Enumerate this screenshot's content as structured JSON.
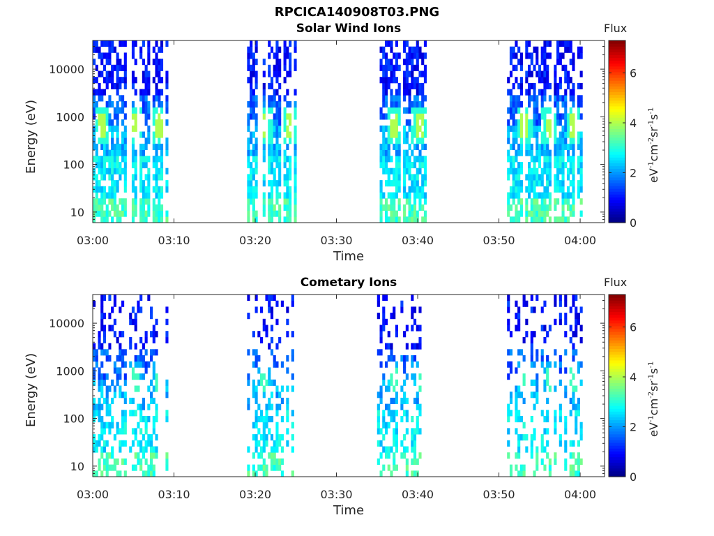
{
  "figure_title": "RPCICA140908T03.PNG",
  "chart_data": [
    {
      "type": "heatmap",
      "title": "Solar Wind Ions",
      "xlabel": "Time",
      "ylabel": "Energy (eV)",
      "x_ticks": [
        "03:00",
        "03:10",
        "03:20",
        "03:30",
        "03:40",
        "03:50",
        "04:00"
      ],
      "y_ticks": [
        "10",
        "100",
        "1000",
        "10000"
      ],
      "y_scale": "log",
      "ylim": [
        6,
        40000
      ],
      "xlim": [
        "03:00",
        "04:03"
      ],
      "colorbar": {
        "label": "Flux",
        "unit": "eV-1cm-2sr-1s-1",
        "ticks": [
          "0",
          "2",
          "4",
          "6"
        ],
        "range": [
          0,
          7.3
        ],
        "colormap": "jet"
      },
      "data_intervals": [
        {
          "start": "03:00",
          "end": "03:09"
        },
        {
          "start": "03:19",
          "end": "03:25"
        },
        {
          "start": "03:35",
          "end": "03:41"
        },
        {
          "start": "03:51",
          "end": "04:00"
        }
      ],
      "peaks": [
        {
          "time": "03:01",
          "energy": 650,
          "flux": 4.0
        },
        {
          "time": "03:05",
          "energy": 650,
          "flux": 4.0
        },
        {
          "time": "03:08",
          "energy": 650,
          "flux": 4.0
        },
        {
          "time": "03:21",
          "energy": 650,
          "flux": 4.0
        },
        {
          "time": "03:24",
          "energy": 650,
          "flux": 4.0
        },
        {
          "time": "03:37",
          "energy": 650,
          "flux": 4.0
        },
        {
          "time": "03:40",
          "energy": 650,
          "flux": 4.0
        },
        {
          "time": "03:53",
          "energy": 650,
          "flux": 4.0
        },
        {
          "time": "03:56",
          "energy": 650,
          "flux": 4.0
        },
        {
          "time": "03:59",
          "energy": 650,
          "flux": 4.0
        }
      ]
    },
    {
      "type": "heatmap",
      "title": "Cometary Ions",
      "xlabel": "Time",
      "ylabel": "Energy (eV)",
      "x_ticks": [
        "03:00",
        "03:10",
        "03:20",
        "03:30",
        "03:40",
        "03:50",
        "04:00"
      ],
      "y_ticks": [
        "10",
        "100",
        "1000",
        "10000"
      ],
      "y_scale": "log",
      "ylim": [
        6,
        40000
      ],
      "xlim": [
        "03:00",
        "04:03"
      ],
      "colorbar": {
        "label": "Flux",
        "unit": "eV-1cm-2sr-1s-1",
        "ticks": [
          "0",
          "2",
          "4",
          "6"
        ],
        "range": [
          0,
          7.3
        ],
        "colormap": "jet"
      },
      "data_intervals": [
        {
          "start": "03:00",
          "end": "03:09"
        },
        {
          "start": "03:19",
          "end": "03:25"
        },
        {
          "start": "03:35",
          "end": "03:41"
        },
        {
          "start": "03:51",
          "end": "04:00"
        }
      ],
      "peaks": [
        {
          "time": "03:05",
          "energy": 650,
          "flux": 3.2
        },
        {
          "time": "03:08",
          "energy": 650,
          "flux": 3.2
        },
        {
          "time": "03:21",
          "energy": 650,
          "flux": 3.2
        },
        {
          "time": "03:37",
          "energy": 650,
          "flux": 3.2
        },
        {
          "time": "03:40",
          "energy": 650,
          "flux": 3.2
        },
        {
          "time": "03:53",
          "energy": 650,
          "flux": 3.2
        },
        {
          "time": "03:56",
          "energy": 650,
          "flux": 3.2
        },
        {
          "time": "03:59",
          "energy": 650,
          "flux": 3.2
        }
      ]
    }
  ]
}
